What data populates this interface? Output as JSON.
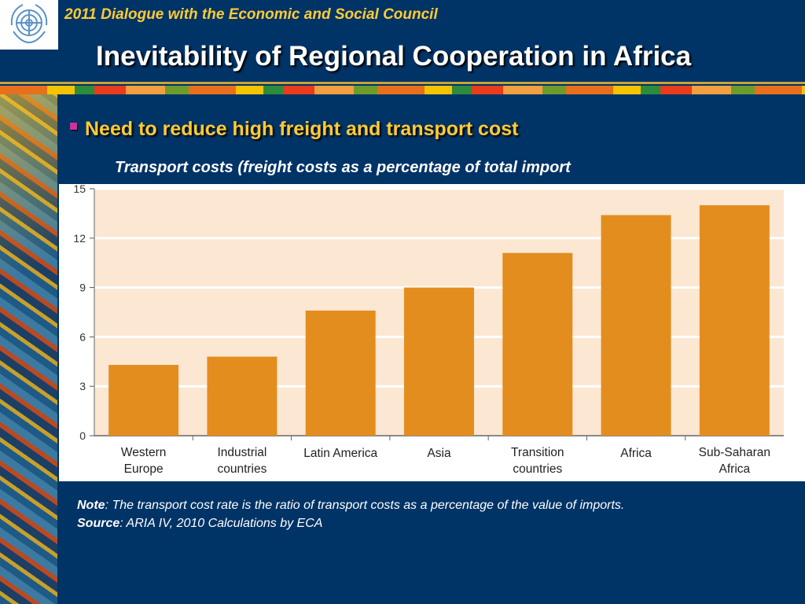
{
  "header": {
    "subtitle": "2011 Dialogue with the Economic and Social Council",
    "title": "Inevitability of Regional Cooperation in Africa",
    "logo_icon": "un-emblem-icon"
  },
  "content": {
    "bullet": "Need to reduce high freight and transport cost",
    "chart_caption": "Transport costs (freight costs as a percentage of total import"
  },
  "notes": {
    "note_label": "Note",
    "note_text": ": The transport cost rate is the ratio of transport costs as a percentage of the value of imports.",
    "source_label": "Source",
    "source_text": ": ARIA IV, 2010 Calculations by ECA"
  },
  "colors": {
    "background": "#003366",
    "accent_text": "#ffcc33",
    "bar": "#e38d1f",
    "plot_bg": "#fbe7d2"
  },
  "chart_data": {
    "type": "bar",
    "categories": [
      [
        "Western",
        "Europe"
      ],
      [
        "Industrial",
        "countries"
      ],
      [
        "Latin America"
      ],
      [
        "Asia"
      ],
      [
        "Transition",
        "countries"
      ],
      [
        "Africa"
      ],
      [
        "Sub-Saharan",
        "Africa"
      ]
    ],
    "values": [
      4.3,
      4.8,
      7.6,
      9.0,
      11.1,
      13.4,
      14.0
    ],
    "title": "",
    "xlabel": "",
    "ylabel": "",
    "ylim": [
      0,
      15
    ],
    "yticks": [
      0,
      3,
      6,
      9,
      12,
      15
    ],
    "grid": true
  }
}
